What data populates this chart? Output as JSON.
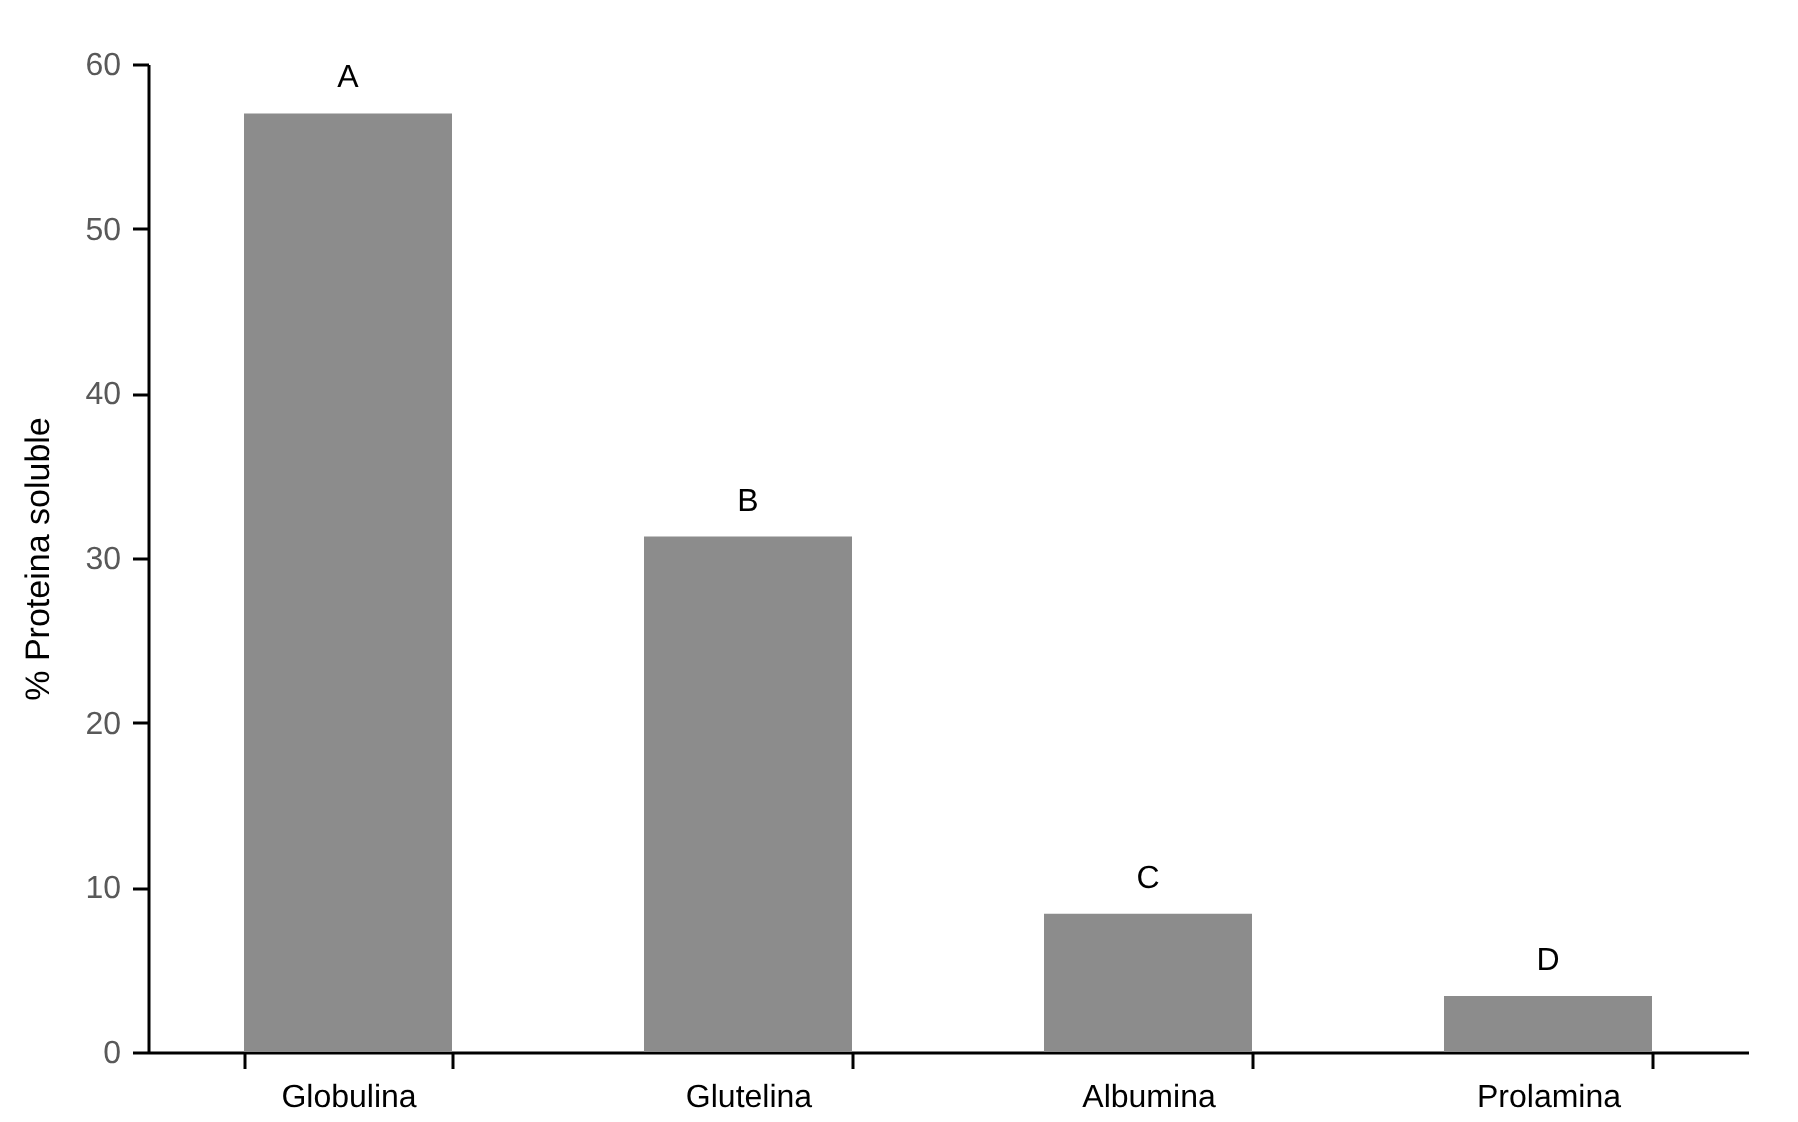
{
  "chart_data": {
    "type": "bar",
    "ylabel": "% Proteina soluble",
    "categories": [
      "Globulina",
      "Glutelina",
      "Albumina",
      "Prolamina"
    ],
    "values": [
      57,
      31.3,
      8.4,
      3.4
    ],
    "color": "#8c8c8c",
    "ylim": [
      0,
      60
    ],
    "yticks": [
      0,
      10,
      20,
      30,
      40,
      50,
      60
    ],
    "annotations": [
      {
        "text": "A",
        "x": "Globulina",
        "y": 57
      },
      {
        "text": "B",
        "x": "Glutelina",
        "y": 31.3
      },
      {
        "text": "C",
        "x": "Albumina",
        "y": 8.4
      },
      {
        "text": "D",
        "x": "Prolamina",
        "y": 3.4
      }
    ]
  }
}
